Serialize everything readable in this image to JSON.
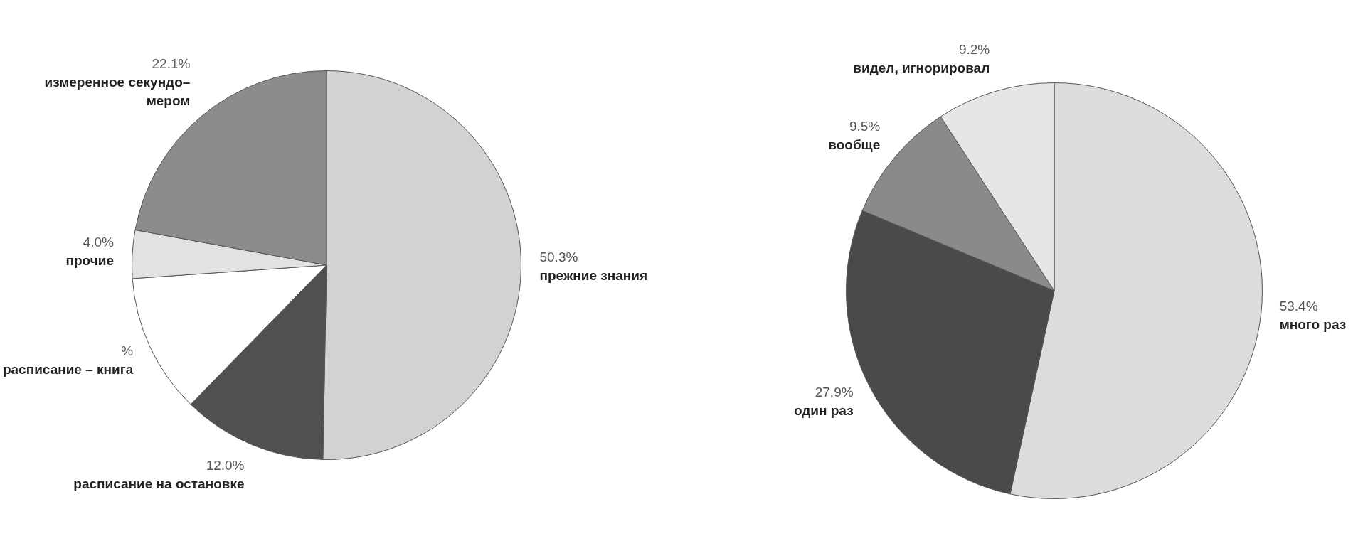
{
  "chart_data": [
    {
      "type": "pie",
      "categories": [
        "прежние знания",
        "расписание на остановке",
        "расписание – книга",
        "прочие",
        "измеренное секундо– мером"
      ],
      "values": [
        50.3,
        12.0,
        11.6,
        4.0,
        22.1
      ],
      "value_labels": [
        "50.3%",
        "12.0%",
        "%",
        "4.0%",
        "22.1%"
      ],
      "colors": [
        "#d2d2d2",
        "#505050",
        "#ffffff",
        "#e2e2e2",
        "#8c8c8c"
      ],
      "legend": false
    },
    {
      "type": "pie",
      "categories": [
        "много раз",
        "один раз",
        "вообще",
        "видел, игнорировал"
      ],
      "values": [
        53.4,
        27.9,
        9.5,
        9.2
      ],
      "value_labels": [
        "53.4%",
        "27.9%",
        "9.5%",
        "9.2%"
      ],
      "colors": [
        "#dcdcdc",
        "#4a4a4a",
        "#8a8a8a",
        "#e6e6e6"
      ],
      "legend": false
    }
  ]
}
